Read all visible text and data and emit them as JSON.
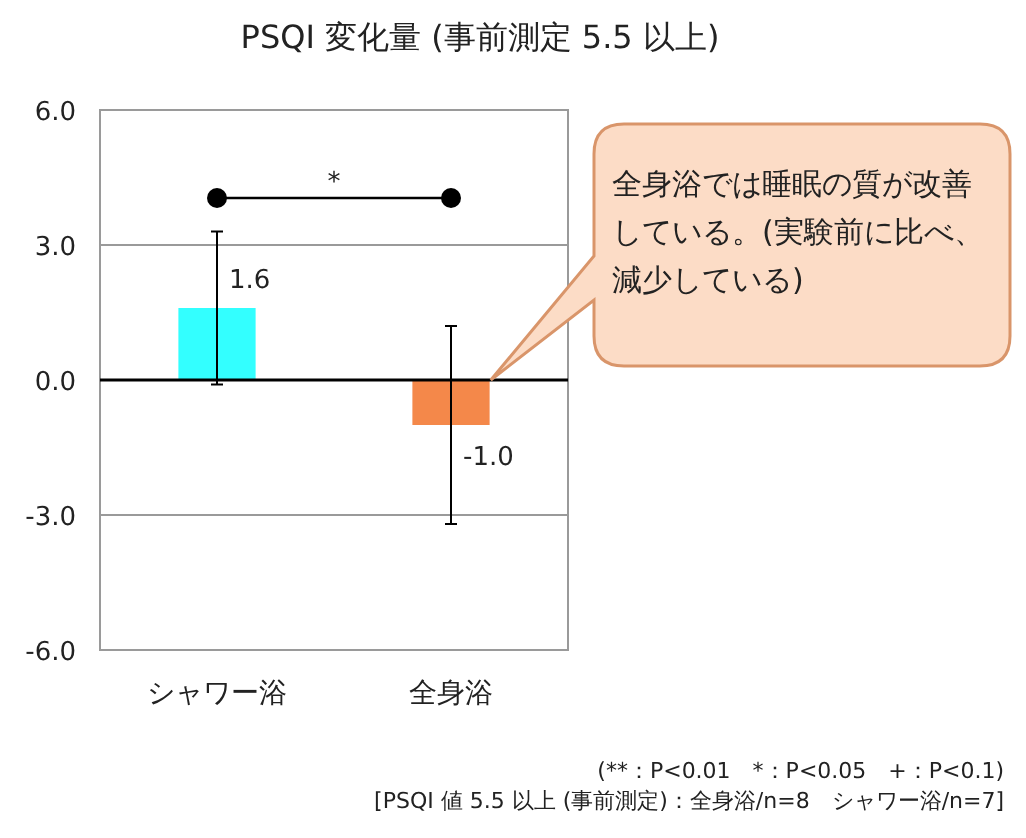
{
  "chart_data": {
    "type": "bar",
    "title": "PSQI  変化量 (事前測定 5.5 以上)",
    "categories": [
      "シャワー浴",
      "全身浴"
    ],
    "series": [
      {
        "values": [
          1.6,
          -1.0
        ],
        "colors": [
          "#33ffff",
          "#f4884a"
        ],
        "errors": [
          1.7,
          2.2
        ],
        "value_labels": [
          "1.6",
          "-1.0"
        ]
      }
    ],
    "ylim": [
      -6,
      6
    ],
    "yticks": [
      {
        "value": 6,
        "label": "6.0"
      },
      {
        "value": 3,
        "label": "3.0"
      },
      {
        "value": 0,
        "label": "0.0"
      },
      {
        "value": -3,
        "label": "-3.0"
      },
      {
        "value": -6,
        "label": "-6.0"
      }
    ],
    "grid": "y",
    "annotations": [
      "*",
      "全身浴では睡眠の質が改善している。(実験前に比べ、減少している)",
      "(**：P<0.01　*：P<0.05　+：P<0.1)",
      "[PSQI 値 5.5 以上 (事前測定)：全身浴/n=8　シャワー浴/n=7]"
    ]
  }
}
